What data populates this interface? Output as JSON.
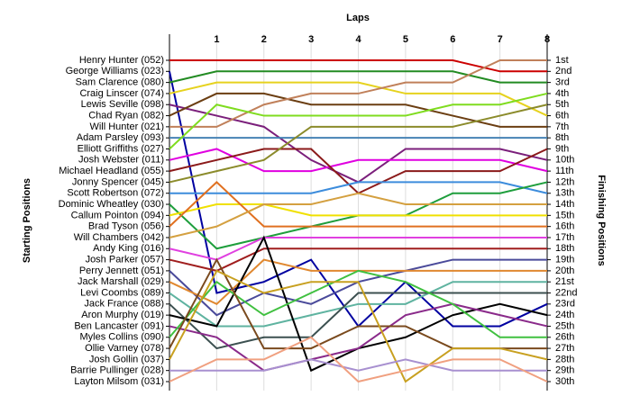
{
  "chart_data": {
    "type": "lap-chart",
    "title": "Laps",
    "y_label": "Starting Positions",
    "y2_label": "Finishing Positions",
    "x": [
      0,
      1,
      2,
      3,
      4,
      5,
      6,
      7,
      8
    ],
    "xlim": [
      0,
      8
    ],
    "xticks": [
      1,
      2,
      3,
      4,
      5,
      6,
      7,
      8
    ],
    "ylim": [
      1,
      30
    ],
    "grid": true,
    "finishing_positions": [
      "1st",
      "2nd",
      "3rd",
      "4th",
      "5th",
      "6th",
      "7th",
      "8th",
      "9th",
      "10th",
      "11th",
      "12th",
      "13th",
      "14th",
      "15th",
      "16th",
      "17th",
      "18th",
      "19th",
      "20th",
      "21st",
      "22nd",
      "23rd",
      "24th",
      "25th",
      "26th",
      "27th",
      "28th",
      "29th",
      "30th"
    ],
    "series": [
      {
        "name": "Henry Hunter (052)",
        "color": "#cc0000",
        "values": [
          1,
          1,
          1,
          1,
          1,
          1,
          1,
          2,
          2
        ]
      },
      {
        "name": "George Williams (023)",
        "color": "#0000a0",
        "values": [
          2,
          22,
          21,
          19,
          25,
          21,
          25,
          25,
          23
        ]
      },
      {
        "name": "Sam Clarence (080)",
        "color": "#228b22",
        "values": [
          3,
          2,
          2,
          2,
          2,
          2,
          2,
          3,
          3
        ]
      },
      {
        "name": "Craig Linscer (074)",
        "color": "#e6d21e",
        "values": [
          4,
          3,
          3,
          3,
          3,
          4,
          4,
          4,
          6
        ]
      },
      {
        "name": "Lewis Seville (098)",
        "color": "#7b1f7b",
        "values": [
          5,
          6,
          7,
          10,
          12,
          9,
          9,
          9,
          10
        ]
      },
      {
        "name": "Chad Ryan (082)",
        "color": "#6b3e12",
        "values": [
          6,
          4,
          4,
          5,
          5,
          5,
          6,
          7,
          7
        ]
      },
      {
        "name": "Will Hunter (021)",
        "color": "#c0805a",
        "values": [
          7,
          7,
          5,
          4,
          4,
          3,
          3,
          1,
          1
        ]
      },
      {
        "name": "Adam Parsley (093)",
        "color": "#4682b4",
        "values": [
          8,
          8,
          8,
          8,
          8,
          8,
          8,
          8,
          8
        ]
      },
      {
        "name": "Elliott Griffiths (027)",
        "color": "#7fdc1f",
        "values": [
          9,
          5,
          6,
          6,
          6,
          6,
          5,
          5,
          4
        ]
      },
      {
        "name": "Josh Webster (011)",
        "color": "#e000e0",
        "values": [
          10,
          9,
          11,
          11,
          10,
          10,
          10,
          10,
          11
        ]
      },
      {
        "name": "Michael Headland (055)",
        "color": "#8b1a1a",
        "values": [
          11,
          10,
          9,
          9,
          13,
          11,
          11,
          11,
          9
        ]
      },
      {
        "name": "Jonny Spencer (045)",
        "color": "#8b8b2b",
        "values": [
          12,
          11,
          10,
          7,
          7,
          7,
          7,
          6,
          5
        ]
      },
      {
        "name": "Scott Robertson (072)",
        "color": "#3c8cdc",
        "values": [
          13,
          13,
          13,
          13,
          12,
          12,
          12,
          12,
          13
        ]
      },
      {
        "name": "Dominic Wheatley (030)",
        "color": "#1e9e3c",
        "values": [
          14,
          18,
          17,
          16,
          15,
          15,
          13,
          13,
          12
        ]
      },
      {
        "name": "Callum Pointon (094)",
        "color": "#f0e000",
        "values": [
          15,
          14,
          14,
          15,
          15,
          15,
          15,
          15,
          15
        ]
      },
      {
        "name": "Brad Tyson (056)",
        "color": "#e07020",
        "values": [
          16,
          12,
          16,
          16,
          16,
          16,
          16,
          16,
          16
        ]
      },
      {
        "name": "Will Chambers (042)",
        "color": "#d4a040",
        "values": [
          17,
          16,
          14,
          14,
          13,
          14,
          14,
          14,
          14
        ]
      },
      {
        "name": "Andy King (016)",
        "color": "#e040e0",
        "values": [
          18,
          19,
          17,
          17,
          17,
          17,
          17,
          17,
          17
        ]
      },
      {
        "name": "Josh Parker (057)",
        "color": "#a01e1e",
        "values": [
          19,
          20,
          18,
          18,
          18,
          18,
          18,
          18,
          18
        ]
      },
      {
        "name": "Perry Jennett (051)",
        "color": "#4a4a9a",
        "values": [
          20,
          24,
          22,
          23,
          21,
          20,
          19,
          19,
          19
        ]
      },
      {
        "name": "Jack Marshall (029)",
        "color": "#e08830",
        "values": [
          21,
          23,
          19,
          20,
          20,
          20,
          20,
          20,
          20
        ]
      },
      {
        "name": "Levi Coombs (089)",
        "color": "#5fb3a0",
        "values": [
          22,
          25,
          25,
          24,
          23,
          23,
          21,
          21,
          21
        ]
      },
      {
        "name": "Jack France (088)",
        "color": "#3c5050",
        "values": [
          23,
          27,
          26,
          26,
          22,
          22,
          22,
          22,
          22
        ]
      },
      {
        "name": "Aron Murphy (019)",
        "color": "#000000",
        "values": [
          24,
          25,
          17,
          29,
          27,
          26,
          24,
          23,
          24
        ]
      },
      {
        "name": "Ben Lancaster (091)",
        "color": "#8a2a8a",
        "values": [
          25,
          26,
          29,
          28,
          27,
          24,
          23,
          24,
          25
        ]
      },
      {
        "name": "Myles Collins (090)",
        "color": "#40c040",
        "values": [
          26,
          21,
          24,
          22,
          20,
          21,
          23,
          26,
          26
        ]
      },
      {
        "name": "Ollie Varney (078)",
        "color": "#7a4a1e",
        "values": [
          27,
          19,
          27,
          27,
          25,
          25,
          27,
          27,
          27
        ]
      },
      {
        "name": "Josh Gollin (037)",
        "color": "#c8a020",
        "values": [
          28,
          20,
          22,
          21,
          21,
          30,
          27,
          27,
          28
        ]
      },
      {
        "name": "Barrie Pullinger (028)",
        "color": "#a890d0",
        "values": [
          29,
          29,
          29,
          28,
          29,
          28,
          29,
          29,
          29
        ]
      },
      {
        "name": "Layton Milsom (031)",
        "color": "#f0a080",
        "values": [
          30,
          28,
          28,
          26,
          30,
          29,
          28,
          28,
          30
        ]
      }
    ]
  }
}
